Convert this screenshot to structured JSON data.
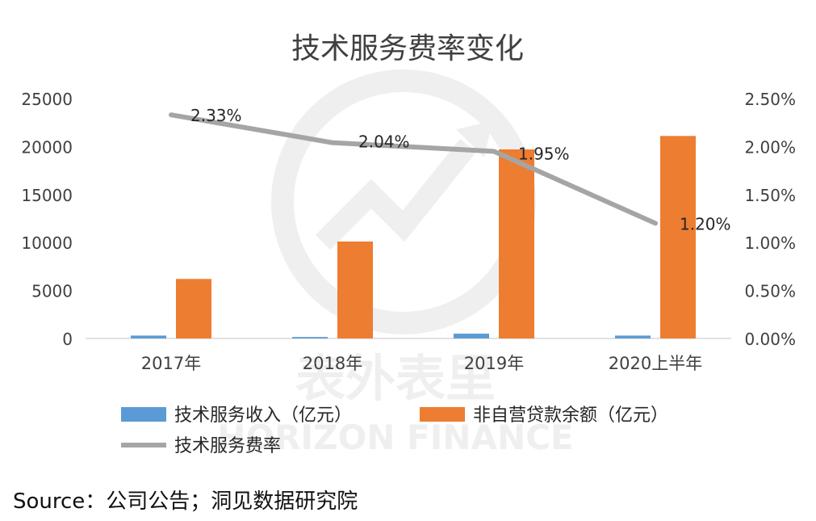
{
  "chart_data": {
    "type": "bar",
    "title": "技术服务费率变化",
    "categories": [
      "2017年",
      "2018年",
      "2019年",
      "2020上半年"
    ],
    "series": [
      {
        "name": "技术服务收入（亿元）",
        "type": "bar",
        "axis": "left",
        "values": [
          300,
          150,
          500,
          300
        ]
      },
      {
        "name": "非自营贷款余额（亿元）",
        "type": "bar",
        "axis": "left",
        "values": [
          6200,
          10100,
          19700,
          21100
        ]
      },
      {
        "name": "技术服务费率",
        "type": "line",
        "axis": "right",
        "values": [
          2.33,
          2.04,
          1.95,
          1.2
        ]
      }
    ],
    "data_labels": [
      "2.33%",
      "2.04%",
      "1.95%",
      "1.20%"
    ],
    "y_left": {
      "ylim": [
        0,
        25000
      ],
      "ticks": [
        "0",
        "5000",
        "10000",
        "15000",
        "20000",
        "25000"
      ]
    },
    "y_right": {
      "ylim": [
        0,
        2.5
      ],
      "ticks": [
        "0.00%",
        "0.50%",
        "1.00%",
        "1.50%",
        "2.00%",
        "2.50%"
      ]
    },
    "legend_position": "bottom",
    "grid": false
  },
  "colors": {
    "bar_income": "#5b9bd5",
    "bar_loan": "#ed7d31",
    "line_rate": "#a5a5a5",
    "axis": "#d9d9d9",
    "text": "#404040"
  },
  "watermark": {
    "cn": "表外表里",
    "en": "HORIZON FINANCE"
  },
  "source": "Source：公司公告；洞见数据研究院"
}
